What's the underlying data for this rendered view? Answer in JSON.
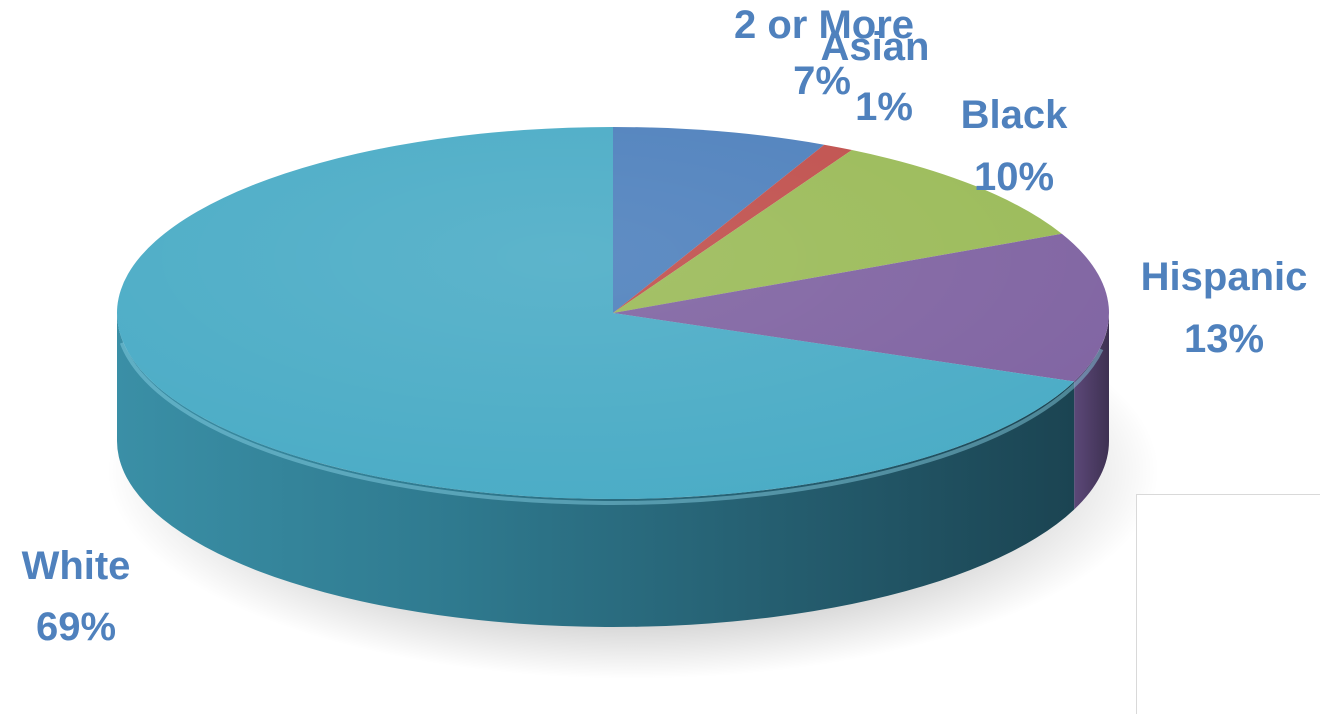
{
  "chart_data": {
    "type": "pie",
    "title": "",
    "style": "3d",
    "slices": [
      {
        "label": "2 or More",
        "value": 7,
        "value_label": "7%",
        "color": "#4f81bd"
      },
      {
        "label": "Asian",
        "value": 1,
        "value_label": "1%",
        "color": "#c0504d"
      },
      {
        "label": "Black",
        "value": 10,
        "value_label": "10%",
        "color": "#9bbb59"
      },
      {
        "label": "Hispanic",
        "value": 13,
        "value_label": "13%",
        "color": "#8064a2"
      },
      {
        "label": "White",
        "value": 69,
        "value_label": "69%",
        "color": "#4bacc6"
      }
    ],
    "label_color": "#4f81bd"
  }
}
